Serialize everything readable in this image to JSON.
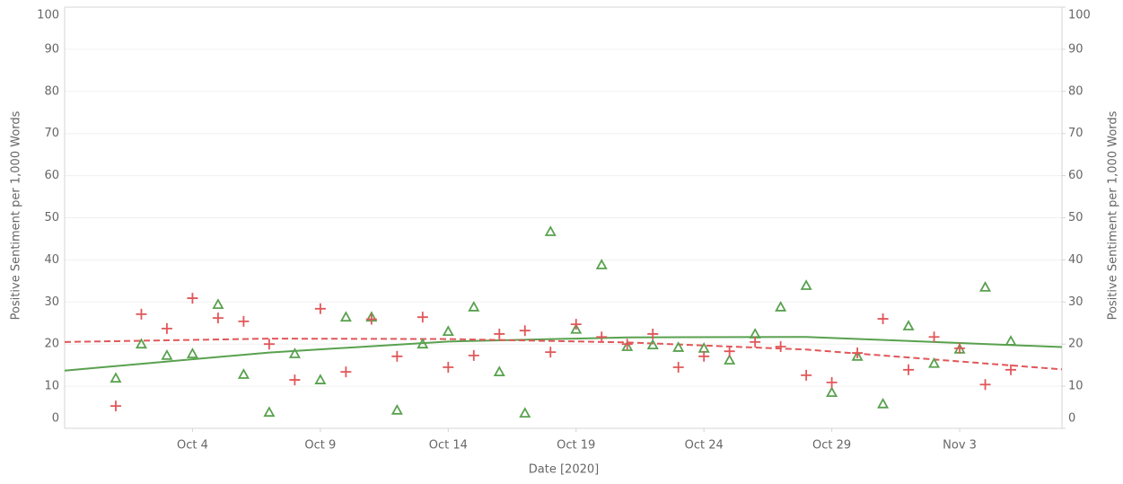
{
  "chart_data": {
    "type": "scatter",
    "x_label": "Date [2020]",
    "y_label": "Positive Sentiment per 1,000 Words",
    "y2_label": "Positive Sentiment per 1,000 Words",
    "x": [
      "2020-10-01",
      "2020-10-02",
      "2020-10-03",
      "2020-10-04",
      "2020-10-05",
      "2020-10-06",
      "2020-10-07",
      "2020-10-08",
      "2020-10-09",
      "2020-10-10",
      "2020-10-11",
      "2020-10-12",
      "2020-10-13",
      "2020-10-14",
      "2020-10-15",
      "2020-10-16",
      "2020-10-17",
      "2020-10-18",
      "2020-10-19",
      "2020-10-20",
      "2020-10-21",
      "2020-10-22",
      "2020-10-23",
      "2020-10-24",
      "2020-10-25",
      "2020-10-26",
      "2020-10-27",
      "2020-10-28",
      "2020-10-29",
      "2020-10-30",
      "2020-10-31",
      "2020-11-01",
      "2020-11-02",
      "2020-11-03",
      "2020-11-04",
      "2020-11-05"
    ],
    "series": [
      {
        "color": "#59a14f",
        "marker": "triangle",
        "values": [
          11.9,
          20,
          17.3,
          17.7,
          29.4,
          12.8,
          3.8,
          17.7,
          11.5,
          26.4,
          26.4,
          4.3,
          20,
          23,
          28.8,
          13.4,
          3.6,
          46.7,
          23.5,
          38.8,
          19.4,
          19.8,
          19.2,
          19,
          16.2,
          22.4,
          28.8,
          33.9,
          8.5,
          17.1,
          5.8,
          24.3,
          15.4,
          18.8,
          33.5,
          20.7
        ]
      },
      {
        "color": "#e15759",
        "marker": "plus",
        "axis": "y2",
        "values": [
          5.3,
          27.1,
          23.7,
          30.9,
          26.2,
          25.4,
          20,
          11.5,
          28.4,
          13.4,
          25.9,
          17.1,
          26.4,
          14.5,
          17.3,
          22.4,
          23.2,
          18.1,
          24.7,
          21.7,
          20,
          22.4,
          14.5,
          17.1,
          18.3,
          20.5,
          19.4,
          12.6,
          10.9,
          17.9,
          26,
          13.9,
          21.7,
          19,
          10.4,
          13.9
        ]
      }
    ],
    "trend_lines": [
      {
        "color": "#59a14f",
        "style": "solid",
        "x": [
          "2020-09-29",
          "2020-10-07",
          "2020-10-14",
          "2020-10-21",
          "2020-10-28",
          "2020-11-07"
        ],
        "values": [
          13.7,
          18,
          20.6,
          21.6,
          21.7,
          19.3
        ]
      },
      {
        "color": "#e15759",
        "style": "dashed",
        "axis": "y2",
        "x": [
          "2020-09-29",
          "2020-10-07",
          "2020-10-14",
          "2020-10-21",
          "2020-10-28",
          "2020-11-07"
        ],
        "values": [
          20.5,
          21.3,
          21.2,
          20.4,
          18.7,
          14
        ]
      }
    ],
    "xlim": [
      "2020-09-29",
      "2020-11-07"
    ],
    "xticks": [
      {
        "value": "2020-10-04",
        "label": "Oct 4"
      },
      {
        "value": "2020-10-09",
        "label": "Oct 9"
      },
      {
        "value": "2020-10-14",
        "label": "Oct 14"
      },
      {
        "value": "2020-10-19",
        "label": "Oct 19"
      },
      {
        "value": "2020-10-24",
        "label": "Oct 24"
      },
      {
        "value": "2020-10-29",
        "label": "Oct 29"
      },
      {
        "value": "2020-11-03",
        "label": "Nov 3"
      }
    ],
    "ylim": [
      0,
      100
    ],
    "yticks": [
      0,
      10,
      20,
      30,
      40,
      50,
      60,
      70,
      80,
      90,
      100
    ],
    "y2lim": [
      0,
      100
    ],
    "y2ticks": [
      0,
      10,
      20,
      30,
      40,
      50,
      60,
      70,
      80,
      90,
      100
    ],
    "grid": true
  }
}
